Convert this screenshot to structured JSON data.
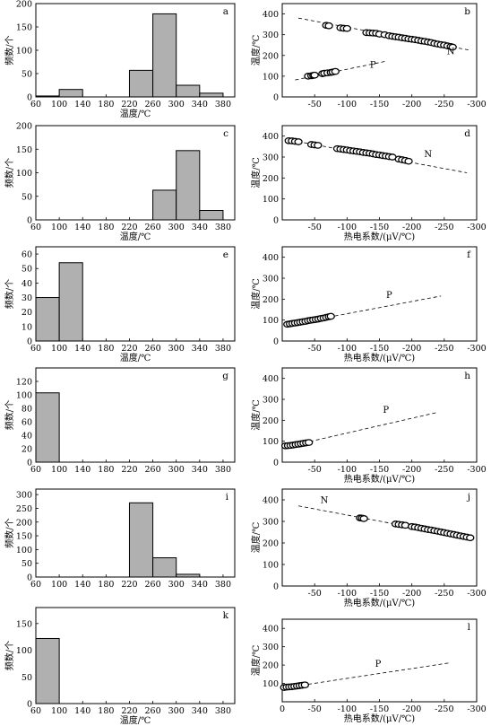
{
  "chart_data": [
    {
      "id": "a",
      "type": "bar",
      "letter": "a",
      "xlabel": "温度/℃",
      "ylabel": "频数/个",
      "xticks": [
        60,
        100,
        140,
        180,
        220,
        260,
        300,
        340,
        380
      ],
      "yticks": [
        0,
        50,
        100,
        150,
        200
      ],
      "xlim": [
        60,
        400
      ],
      "ylim": [
        0,
        200
      ],
      "bins": [
        [
          60,
          100
        ],
        [
          100,
          140
        ],
        [
          140,
          180
        ],
        [
          180,
          220
        ],
        [
          220,
          260
        ],
        [
          260,
          300
        ],
        [
          300,
          340
        ],
        [
          340,
          380
        ]
      ],
      "values": [
        2,
        16,
        0,
        0,
        57,
        178,
        25,
        8
      ]
    },
    {
      "id": "b",
      "type": "scatter",
      "letter": "b",
      "xlabel": "",
      "ylabel": "温度/℃",
      "xticks": [
        -50,
        -100,
        -150,
        -200,
        -250,
        -300
      ],
      "yticks": [
        0,
        100,
        200,
        300,
        400
      ],
      "xlim": [
        0,
        -300
      ],
      "ylim": [
        0,
        450
      ],
      "series": [
        {
          "name": "N",
          "points": [
            [
              -68,
              345
            ],
            [
              -72,
              343
            ],
            [
              -90,
              333
            ],
            [
              -95,
              331
            ],
            [
              -100,
              330
            ],
            [
              -130,
              310
            ],
            [
              -135,
              309
            ],
            [
              -140,
              308
            ],
            [
              -145,
              307
            ],
            [
              -150,
              303
            ],
            [
              -158,
              300
            ],
            [
              -165,
              295
            ],
            [
              -170,
              292
            ],
            [
              -175,
              290
            ],
            [
              -180,
              288
            ],
            [
              -185,
              285
            ],
            [
              -190,
              283
            ],
            [
              -195,
              280
            ],
            [
              -200,
              278
            ],
            [
              -205,
              276
            ],
            [
              -210,
              273
            ],
            [
              -215,
              270
            ],
            [
              -220,
              268
            ],
            [
              -225,
              265
            ],
            [
              -230,
              262
            ],
            [
              -235,
              258
            ],
            [
              -240,
              255
            ],
            [
              -245,
              252
            ],
            [
              -250,
              250
            ],
            [
              -255,
              246
            ],
            [
              -260,
              243
            ],
            [
              -263,
              240
            ]
          ]
        },
        {
          "name": "P",
          "points": [
            [
              -40,
              100
            ],
            [
              -45,
              102
            ],
            [
              -48,
              104
            ],
            [
              -50,
              105
            ],
            [
              -62,
              112
            ],
            [
              -65,
              114
            ],
            [
              -70,
              116
            ],
            [
              -75,
              118
            ],
            [
              -78,
              120
            ],
            [
              -82,
              123
            ]
          ]
        }
      ],
      "lines": [
        {
          "name": "N",
          "x1": -25,
          "y1": 380,
          "x2": -290,
          "y2": 225
        },
        {
          "name": "P",
          "x1": -20,
          "y1": 82,
          "x2": -160,
          "y2": 172
        }
      ]
    },
    {
      "id": "c",
      "type": "bar",
      "letter": "c",
      "xlabel": "温度/℃",
      "ylabel": "频数/个",
      "xticks": [
        60,
        100,
        140,
        180,
        220,
        260,
        300,
        340,
        380
      ],
      "yticks": [
        0,
        50,
        100,
        150,
        200
      ],
      "xlim": [
        60,
        400
      ],
      "ylim": [
        0,
        200
      ],
      "bins": [
        [
          260,
          300
        ],
        [
          300,
          340
        ],
        [
          340,
          380
        ]
      ],
      "values": [
        63,
        147,
        20
      ]
    },
    {
      "id": "d",
      "type": "scatter",
      "letter": "d",
      "xlabel": "热电系数/(μV/℃)",
      "ylabel": "温度/℃",
      "xticks": [
        -50,
        -100,
        -150,
        -200,
        -250,
        -300
      ],
      "yticks": [
        0,
        100,
        200,
        300,
        400
      ],
      "xlim": [
        0,
        -300
      ],
      "ylim": [
        0,
        450
      ],
      "series": [
        {
          "name": "N",
          "points": [
            [
              -10,
              378
            ],
            [
              -15,
              377
            ],
            [
              -20,
              375
            ],
            [
              -25,
              373
            ],
            [
              -45,
              360
            ],
            [
              -50,
              358
            ],
            [
              -55,
              356
            ],
            [
              -85,
              340
            ],
            [
              -90,
              338
            ],
            [
              -95,
              336
            ],
            [
              -100,
              334
            ],
            [
              -105,
              331
            ],
            [
              -110,
              329
            ],
            [
              -115,
              327
            ],
            [
              -120,
              325
            ],
            [
              -125,
              322
            ],
            [
              -130,
              320
            ],
            [
              -135,
              318
            ],
            [
              -140,
              315
            ],
            [
              -145,
              312
            ],
            [
              -150,
              310
            ],
            [
              -155,
              307
            ],
            [
              -160,
              305
            ],
            [
              -165,
              302
            ],
            [
              -170,
              300
            ],
            [
              -180,
              290
            ],
            [
              -185,
              287
            ],
            [
              -190,
              284
            ],
            [
              -195,
              280
            ]
          ]
        }
      ],
      "lines": [
        {
          "name": "N",
          "x1": -5,
          "y1": 385,
          "x2": -285,
          "y2": 225
        }
      ]
    },
    {
      "id": "e",
      "type": "bar",
      "letter": "e",
      "xlabel": "温度/℃",
      "ylabel": "频数/个",
      "xticks": [
        60,
        100,
        140,
        180,
        220,
        260,
        300,
        340,
        380
      ],
      "yticks": [
        0,
        10,
        20,
        30,
        40,
        50,
        60
      ],
      "xlim": [
        60,
        400
      ],
      "ylim": [
        0,
        65
      ],
      "bins": [
        [
          60,
          100
        ],
        [
          100,
          140
        ]
      ],
      "values": [
        30,
        54
      ]
    },
    {
      "id": "f",
      "type": "scatter",
      "letter": "f",
      "xlabel": "热电系数/(μV/℃)",
      "ylabel": "温度/℃",
      "xticks": [
        -50,
        -100,
        -150,
        -200,
        -250,
        -300
      ],
      "yticks": [
        0,
        100,
        200,
        300,
        400
      ],
      "xlim": [
        0,
        -300
      ],
      "ylim": [
        0,
        450
      ],
      "series": [
        {
          "name": "P",
          "points": [
            [
              -8,
              80
            ],
            [
              -12,
              82
            ],
            [
              -16,
              84
            ],
            [
              -20,
              86
            ],
            [
              -24,
              88
            ],
            [
              -28,
              90
            ],
            [
              -32,
              92
            ],
            [
              -36,
              94
            ],
            [
              -40,
              97
            ],
            [
              -44,
              99
            ],
            [
              -48,
              101
            ],
            [
              -52,
              103
            ],
            [
              -56,
              105
            ],
            [
              -60,
              108
            ],
            [
              -64,
              110
            ],
            [
              -68,
              113
            ],
            [
              -72,
              116
            ],
            [
              -75,
              118
            ]
          ]
        }
      ],
      "lines": [
        {
          "name": "P",
          "x1": -5,
          "y1": 75,
          "x2": -245,
          "y2": 215
        }
      ]
    },
    {
      "id": "g",
      "type": "bar",
      "letter": "g",
      "xlabel": "",
      "ylabel": "频数/个",
      "xticks": [
        60,
        100,
        140,
        180,
        220,
        260,
        300,
        340,
        380
      ],
      "yticks": [
        0,
        20,
        40,
        60,
        80,
        100,
        120
      ],
      "xlim": [
        60,
        400
      ],
      "ylim": [
        0,
        140
      ],
      "bins": [
        [
          60,
          100
        ]
      ],
      "values": [
        103
      ]
    },
    {
      "id": "h",
      "type": "scatter",
      "letter": "h",
      "xlabel": "热电系数/(μV/℃)",
      "ylabel": "温度/℃",
      "xticks": [
        -50,
        -100,
        -150,
        -200,
        -250,
        -300
      ],
      "yticks": [
        0,
        100,
        200,
        300,
        400
      ],
      "xlim": [
        0,
        -300
      ],
      "ylim": [
        0,
        450
      ],
      "series": [
        {
          "name": "P",
          "points": [
            [
              -5,
              78
            ],
            [
              -9,
              79
            ],
            [
              -13,
              80
            ],
            [
              -17,
              82
            ],
            [
              -21,
              84
            ],
            [
              -25,
              86
            ],
            [
              -29,
              88
            ],
            [
              -33,
              90
            ],
            [
              -37,
              92
            ],
            [
              -41,
              94
            ]
          ]
        }
      ],
      "lines": [
        {
          "name": "P",
          "x1": -5,
          "y1": 72,
          "x2": -240,
          "y2": 238
        }
      ]
    },
    {
      "id": "i",
      "type": "bar",
      "letter": "i",
      "xlabel": "",
      "ylabel": "频数/个",
      "xticks": [
        60,
        100,
        140,
        180,
        220,
        260,
        300,
        340,
        380
      ],
      "yticks": [
        0,
        50,
        100,
        150,
        200,
        250,
        300
      ],
      "xlim": [
        60,
        400
      ],
      "ylim": [
        0,
        320
      ],
      "bins": [
        [
          220,
          260
        ],
        [
          260,
          300
        ],
        [
          300,
          340
        ]
      ],
      "values": [
        270,
        70,
        10
      ]
    },
    {
      "id": "j",
      "type": "scatter",
      "letter": "j",
      "xlabel": "热电系数/(μV/℃)",
      "ylabel": "温度/℃",
      "xticks": [
        -50,
        -100,
        -150,
        -200,
        -250,
        -300
      ],
      "yticks": [
        0,
        100,
        200,
        300,
        400
      ],
      "xlim": [
        0,
        -300
      ],
      "ylim": [
        0,
        450
      ],
      "series": [
        {
          "name": "N",
          "points": [
            [
              -120,
              316
            ],
            [
              -123,
              315
            ],
            [
              -126,
              313
            ],
            [
              -175,
              288
            ],
            [
              -180,
              286
            ],
            [
              -185,
              284
            ],
            [
              -190,
              282
            ],
            [
              -200,
              276
            ],
            [
              -205,
              274
            ],
            [
              -210,
              271
            ],
            [
              -215,
              268
            ],
            [
              -220,
              265
            ],
            [
              -225,
              262
            ],
            [
              -230,
              260
            ],
            [
              -235,
              257
            ],
            [
              -240,
              254
            ],
            [
              -245,
              251
            ],
            [
              -250,
              248
            ],
            [
              -255,
              245
            ],
            [
              -260,
              242
            ],
            [
              -265,
              239
            ],
            [
              -270,
              236
            ],
            [
              -275,
              233
            ],
            [
              -280,
              230
            ],
            [
              -285,
              227
            ],
            [
              -290,
              224
            ]
          ]
        }
      ],
      "lines": [
        {
          "name": "N",
          "x1": -25,
          "y1": 372,
          "x2": -290,
          "y2": 222
        }
      ]
    },
    {
      "id": "k",
      "type": "bar",
      "letter": "k",
      "xlabel": "温度/℃",
      "ylabel": "频数/个",
      "xticks": [
        60,
        100,
        140,
        180,
        220,
        260,
        300,
        340,
        380
      ],
      "yticks": [
        0,
        50,
        100,
        150
      ],
      "xlim": [
        60,
        400
      ],
      "ylim": [
        0,
        180
      ],
      "bins": [
        [
          60,
          100
        ]
      ],
      "values": [
        122
      ]
    },
    {
      "id": "l",
      "type": "scatter",
      "letter": "l",
      "xlabel": "热电系数/(μV/℃)",
      "ylabel": "温度/℃",
      "xticks": [
        0,
        -50,
        -100,
        -150,
        -200,
        -250,
        -300
      ],
      "yticks": [
        100,
        200,
        300,
        400
      ],
      "xlim": [
        0,
        -300
      ],
      "ylim": [
        0,
        450
      ],
      "series": [
        {
          "name": "P",
          "points": [
            [
              -3,
              78
            ],
            [
              -7,
              80
            ],
            [
              -11,
              81
            ],
            [
              -15,
              82
            ],
            [
              -19,
              84
            ],
            [
              -23,
              86
            ],
            [
              -27,
              88
            ],
            [
              -31,
              90
            ],
            [
              -35,
              92
            ]
          ]
        }
      ],
      "lines": [
        {
          "name": "P",
          "x1": -2,
          "y1": 75,
          "x2": -258,
          "y2": 212
        }
      ]
    }
  ],
  "colors": {
    "bar_fill": "#b0b0b0",
    "stroke": "#000000",
    "point_fill": "#ffffff"
  }
}
